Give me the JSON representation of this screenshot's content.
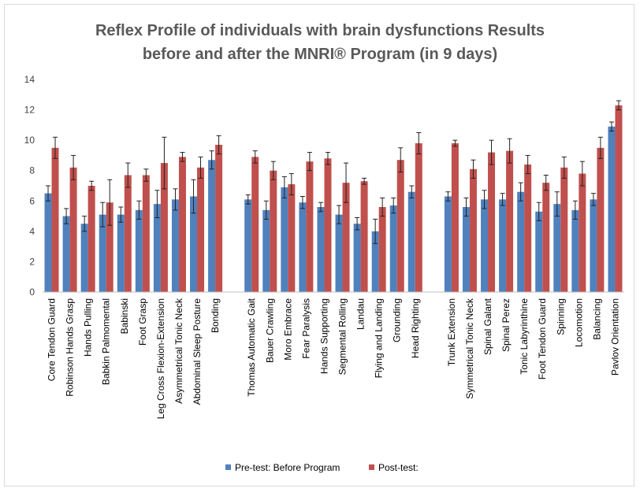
{
  "chart_data": {
    "type": "bar",
    "title_lines": [
      "Reflex Profile of individuals with brain dysfunctions Results",
      "before and after the MNRI® Program (in 9 days)"
    ],
    "xlabel": "",
    "ylabel": "",
    "ylim": [
      0,
      14
    ],
    "yticks": [
      0,
      2,
      4,
      6,
      8,
      10,
      12,
      14
    ],
    "grid": false,
    "legend_position": "bottom",
    "colors": {
      "pre": "#4f81bd",
      "post": "#c0504d",
      "error": "#222222",
      "axis": "#bfbfbf"
    },
    "groups": [
      {
        "categories": [
          "Core Tendon Guard",
          "Robinson Hands Grasp",
          "Hands Pulling",
          "Babkin Palmomental",
          "Babinski",
          "Foot Grasp",
          "Leg Cross Flexion-Extension",
          "Asymmetrical Tonic Neck",
          "Abdominal Sleep Posture",
          "Bonding"
        ],
        "pre": [
          6.5,
          5.0,
          4.5,
          5.1,
          5.1,
          5.4,
          5.8,
          6.1,
          6.3,
          8.7
        ],
        "pre_err": [
          0.5,
          0.5,
          0.5,
          0.8,
          0.5,
          0.6,
          0.9,
          0.7,
          1.1,
          0.6
        ],
        "post": [
          9.5,
          8.2,
          7.0,
          5.9,
          7.7,
          7.7,
          8.5,
          8.9,
          8.2,
          9.7
        ],
        "post_err": [
          0.7,
          0.8,
          0.3,
          1.5,
          0.8,
          0.4,
          1.7,
          0.3,
          0.7,
          0.6
        ]
      },
      {
        "categories": [
          "Thomas Automatic Gait",
          "Bauer Crawling",
          "Moro Embrace",
          "Fear Paralysis",
          "Hands Supporting",
          "Segmental Rolling",
          "Landau",
          "Flying and Landing",
          "Grounding",
          "Head Righting"
        ],
        "pre": [
          6.1,
          5.4,
          6.9,
          5.9,
          5.6,
          5.1,
          4.5,
          4.0,
          5.7,
          6.6
        ],
        "pre_err": [
          0.3,
          0.6,
          0.7,
          0.4,
          0.3,
          0.6,
          0.4,
          0.8,
          0.5,
          0.4
        ],
        "post": [
          8.9,
          8.0,
          7.1,
          8.6,
          8.8,
          7.2,
          7.3,
          5.6,
          8.7,
          9.8
        ],
        "post_err": [
          0.4,
          0.6,
          0.7,
          0.6,
          0.4,
          1.3,
          0.2,
          0.6,
          0.8,
          0.7
        ]
      },
      {
        "categories": [
          "Trunk Extension",
          "Symmetrical Tonic Neck",
          "Spinal Galant",
          "Spinal Perez",
          "Tonic Labyrinthine",
          "Foot Tendon Guard",
          "Spinning",
          "Locomotion",
          "Balancing",
          "Pavlov Orientation"
        ],
        "pre": [
          6.3,
          5.6,
          6.1,
          6.1,
          6.6,
          5.3,
          5.8,
          5.4,
          6.1,
          10.9
        ],
        "pre_err": [
          0.3,
          0.6,
          0.6,
          0.4,
          0.6,
          0.6,
          0.8,
          0.6,
          0.4,
          0.3
        ],
        "post": [
          9.8,
          8.1,
          9.2,
          9.3,
          8.4,
          7.2,
          8.2,
          7.8,
          9.5,
          12.3
        ],
        "post_err": [
          0.2,
          0.6,
          0.8,
          0.8,
          0.6,
          0.5,
          0.7,
          0.8,
          0.7,
          0.3
        ]
      }
    ],
    "series": [
      {
        "key": "pre",
        "name": "Pre-test: Before Program"
      },
      {
        "key": "post",
        "name": "Post-test:"
      }
    ]
  }
}
